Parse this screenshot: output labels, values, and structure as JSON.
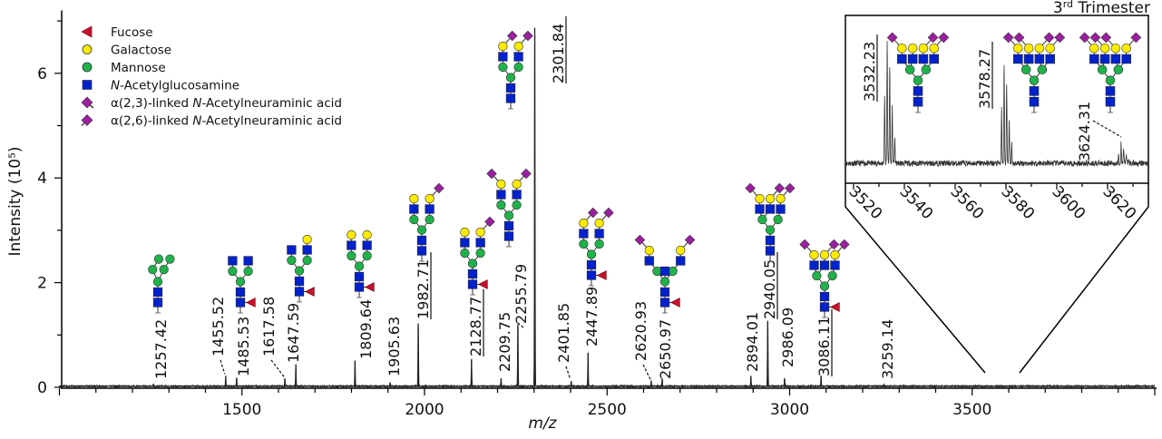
{
  "chart_data": {
    "type": "line",
    "title": "",
    "xlabel": "m/z",
    "ylabel": "Intensity (10⁵)",
    "xlim": [
      1000,
      4000
    ],
    "ylim": [
      0,
      7.2
    ],
    "x_ticks": [
      1500,
      2000,
      2500,
      3000,
      3500
    ],
    "y_ticks": [
      0,
      2,
      4,
      6
    ],
    "grid": false,
    "legend_position": "top-left",
    "legend": [
      {
        "symbol": "fucose",
        "label_parts": [
          {
            "t": "Fucose"
          }
        ]
      },
      {
        "symbol": "galactose",
        "label_parts": [
          {
            "t": "Galactose"
          }
        ]
      },
      {
        "symbol": "mannose",
        "label_parts": [
          {
            "t": "Mannose"
          }
        ]
      },
      {
        "symbol": "glcnac",
        "label_parts": [
          {
            "t": "N",
            "i": true
          },
          {
            "t": "-Acetylglucosamine"
          }
        ]
      },
      {
        "symbol": "neuac-2,3",
        "label_parts": [
          {
            "t": "α(2,3)-linked "
          },
          {
            "t": "N",
            "i": true
          },
          {
            "t": "-Acetylneuraminic acid"
          }
        ]
      },
      {
        "symbol": "neuac-2,6",
        "label_parts": [
          {
            "t": "α(2,6)-linked "
          },
          {
            "t": "N",
            "i": true
          },
          {
            "t": "-Acetylneuraminic acid"
          }
        ]
      }
    ],
    "colors": {
      "fucose": "#c8102e",
      "galactose": "#ffeb00",
      "mannose": "#1fb24a",
      "glcnac": "#0022cc",
      "neuac": "#9b1fa0",
      "trace": "#222222"
    },
    "peaks": [
      {
        "mz": 1257.42,
        "intensity": 0.05,
        "label": "1257.42",
        "underlined": false,
        "leader": false
      },
      {
        "mz": 1455.52,
        "intensity": 0.2,
        "label": "1455.52",
        "underlined": false,
        "leader": true
      },
      {
        "mz": 1485.53,
        "intensity": 0.16,
        "label": "1485.53",
        "underlined": false,
        "leader": false
      },
      {
        "mz": 1617.58,
        "intensity": 0.15,
        "label": "1617.58",
        "underlined": false,
        "leader": true
      },
      {
        "mz": 1647.59,
        "intensity": 0.42,
        "label": "1647.59",
        "underlined": false,
        "leader": false
      },
      {
        "mz": 1809.64,
        "intensity": 0.49,
        "label": "1809.64",
        "underlined": false,
        "leader": false
      },
      {
        "mz": 1905.63,
        "intensity": 0.07,
        "label": "1905.63",
        "underlined": false,
        "leader": false
      },
      {
        "mz": 1982.71,
        "intensity": 1.2,
        "label": "1982.71",
        "underlined": true,
        "leader": false
      },
      {
        "mz": 2128.77,
        "intensity": 0.52,
        "label": "2128.77",
        "underlined": true,
        "leader": false
      },
      {
        "mz": 2209.75,
        "intensity": 0.15,
        "label": "2209.75",
        "underlined": false,
        "leader": false
      },
      {
        "mz": 2255.79,
        "intensity": 1.19,
        "label": "2255.79",
        "underlined": false,
        "leader": true
      },
      {
        "mz": 2301.84,
        "intensity": 6.85,
        "label": "2301.84",
        "underlined": true,
        "leader": false
      },
      {
        "mz": 2401.85,
        "intensity": 0.1,
        "label": "2401.85",
        "underlined": false,
        "leader": true
      },
      {
        "mz": 2447.89,
        "intensity": 0.64,
        "label": "2447.89",
        "underlined": false,
        "leader": false
      },
      {
        "mz": 2620.93,
        "intensity": 0.1,
        "label": "2620.93",
        "underlined": false,
        "leader": true
      },
      {
        "mz": 2650.97,
        "intensity": 0.15,
        "label": "2650.97",
        "underlined": false,
        "leader": false
      },
      {
        "mz": 2894.01,
        "intensity": 0.2,
        "label": "2894.01",
        "underlined": false,
        "leader": false
      },
      {
        "mz": 2940.05,
        "intensity": 1.25,
        "label": "2940.05",
        "underlined": true,
        "leader": false
      },
      {
        "mz": 2986.09,
        "intensity": 0.15,
        "label": "2986.09",
        "underlined": false,
        "leader": false
      },
      {
        "mz": 3086.11,
        "intensity": 0.2,
        "label": "3086.11",
        "underlined": true,
        "leader": false
      },
      {
        "mz": 3259.14,
        "intensity": 0.03,
        "label": "3259.14",
        "underlined": false,
        "leader": false
      }
    ],
    "glycans": [
      {
        "mz": 1257.42,
        "high_mannose": true
      },
      {
        "mz": 1485.53,
        "fucose": true,
        "antennae": [
          {
            "gal": false
          },
          {
            "gal": false
          }
        ]
      },
      {
        "mz": 1647.59,
        "fucose": true,
        "antennae": [
          {
            "gal": false
          },
          {
            "gal": true
          }
        ]
      },
      {
        "mz": 1809.64,
        "fucose": true,
        "antennae": [
          {
            "gal": true
          },
          {
            "gal": true
          }
        ]
      },
      {
        "mz": 1982.71,
        "fucose": false,
        "antennae": [
          {
            "gal": true
          },
          {
            "gal": true,
            "sia": "2,6"
          }
        ]
      },
      {
        "mz": 2128.77,
        "fucose": true,
        "antennae": [
          {
            "gal": true
          },
          {
            "gal": true,
            "sia": "2,6"
          }
        ]
      },
      {
        "mz": 2255.79,
        "fucose": false,
        "antennae": [
          {
            "gal": true,
            "sia": "2,3"
          },
          {
            "gal": true,
            "sia": "2,6"
          }
        ]
      },
      {
        "mz": 2301.84,
        "fucose": false,
        "antennae": [
          {
            "gal": true,
            "sia": "2,6"
          },
          {
            "gal": true,
            "sia": "2,6"
          }
        ]
      },
      {
        "mz": 2447.89,
        "fucose": true,
        "antennae": [
          {
            "gal": true,
            "sia": "2,6"
          },
          {
            "gal": true,
            "sia": "2,6"
          }
        ]
      },
      {
        "mz": 2650.97,
        "fucose": true,
        "bisect": true,
        "antennae": [
          {
            "gal": true,
            "sia": "2,3"
          },
          {
            "gal": true,
            "sia": "2,6"
          }
        ]
      },
      {
        "mz": 2940.05,
        "fucose": false,
        "antennae": [
          {
            "gal": true,
            "sia": "2,3"
          },
          {
            "gal": true,
            "sia": "2,6"
          },
          {
            "gal": true,
            "sia": "2,6"
          }
        ]
      },
      {
        "mz": 3086.11,
        "fucose": true,
        "antennae": [
          {
            "gal": true,
            "sia": "2,3"
          },
          {
            "gal": true,
            "sia": "2,6"
          },
          {
            "gal": true,
            "sia": "2,6"
          }
        ]
      }
    ],
    "inset": {
      "title_main": "3",
      "title_sup": "rd",
      "title_rest": " Trimester",
      "xlim": [
        3517,
        3636
      ],
      "x_ticks": [
        3520,
        3540,
        3560,
        3580,
        3600,
        3620
      ],
      "zoom_range_mz": [
        3530,
        3630
      ],
      "peaks": [
        {
          "mz": 3532.23,
          "relative_intensity": 1.0,
          "label": "3532.23",
          "underlined": true,
          "leader": false
        },
        {
          "mz": 3578.27,
          "relative_intensity": 0.8,
          "label": "3578.27",
          "underlined": true,
          "leader": false
        },
        {
          "mz": 3624.31,
          "relative_intensity": 0.15,
          "label": "3624.31",
          "underlined": false,
          "leader": true
        }
      ],
      "glycans": [
        {
          "mz": 3532.23,
          "fucose": false,
          "antennae": [
            {
              "gal": true,
              "sia": "2,3"
            },
            {
              "gal": true
            },
            {
              "gal": true,
              "sia": "2,6"
            },
            {
              "gal": true,
              "sia": "2,6"
            }
          ],
          "extra_sia": "2,6"
        },
        {
          "mz": 3578.27,
          "fucose": false,
          "antennae": [
            {
              "gal": true,
              "sia": "2,3"
            },
            {
              "gal": true,
              "sia": "2,3"
            },
            {
              "gal": true,
              "sia": "2,6"
            },
            {
              "gal": true,
              "sia": "2,6"
            }
          ]
        },
        {
          "mz": 3624.31,
          "fucose": false,
          "antennae": [
            {
              "gal": true,
              "sia": "2,3"
            },
            {
              "gal": true,
              "sia": "2,3"
            },
            {
              "gal": true,
              "sia": "2,3"
            },
            {
              "gal": true,
              "sia": "2,6"
            }
          ]
        }
      ]
    }
  }
}
